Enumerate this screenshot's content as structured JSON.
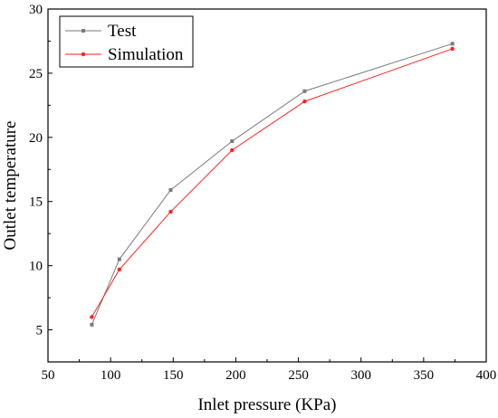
{
  "chart_data": {
    "type": "line",
    "xlabel": "Inlet pressure (KPa)",
    "ylabel": "Outlet temperature",
    "xlim": [
      50,
      400
    ],
    "ylim": [
      2.5,
      30
    ],
    "xticks": [
      50,
      100,
      150,
      200,
      250,
      300,
      350,
      400
    ],
    "yticks": [
      5,
      10,
      15,
      20,
      25,
      30
    ],
    "legend_position": "top-left",
    "grid": false,
    "series": [
      {
        "name": "Test",
        "color": "#7a7a7a",
        "marker": "square",
        "x": [
          85,
          107,
          148,
          197,
          255,
          373
        ],
        "y": [
          5.4,
          10.5,
          15.9,
          19.7,
          23.6,
          27.3
        ]
      },
      {
        "name": "Simulation",
        "color": "#ff2020",
        "marker": "circle",
        "x": [
          85,
          107,
          148,
          197,
          255,
          373
        ],
        "y": [
          6.0,
          9.7,
          14.2,
          19.0,
          22.8,
          26.9
        ]
      }
    ]
  }
}
